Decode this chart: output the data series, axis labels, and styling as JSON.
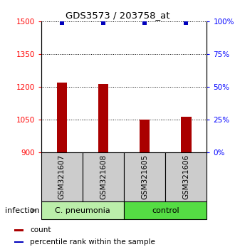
{
  "title": "GDS3573 / 203758_at",
  "samples": [
    "GSM321607",
    "GSM321608",
    "GSM321605",
    "GSM321606"
  ],
  "counts": [
    1220,
    1215,
    1052,
    1065
  ],
  "percentiles": [
    99,
    99,
    99,
    99
  ],
  "bar_color": "#AA0000",
  "dot_color": "#0000BB",
  "ylim_left": [
    900,
    1500
  ],
  "yticks_left": [
    900,
    1050,
    1200,
    1350,
    1500
  ],
  "ylim_right": [
    0,
    100
  ],
  "yticks_right": [
    0,
    25,
    50,
    75,
    100
  ],
  "groups": [
    {
      "label": "C. pneumonia",
      "indices": [
        0,
        1
      ],
      "color": "#BBEEAA"
    },
    {
      "label": "control",
      "indices": [
        2,
        3
      ],
      "color": "#55DD44"
    }
  ],
  "group_label_left": "infection",
  "legend_items": [
    {
      "color": "#AA0000",
      "label": "count"
    },
    {
      "color": "#0000BB",
      "label": "percentile rank within the sample"
    }
  ],
  "sample_box_color": "#CCCCCC",
  "bar_width": 0.25
}
